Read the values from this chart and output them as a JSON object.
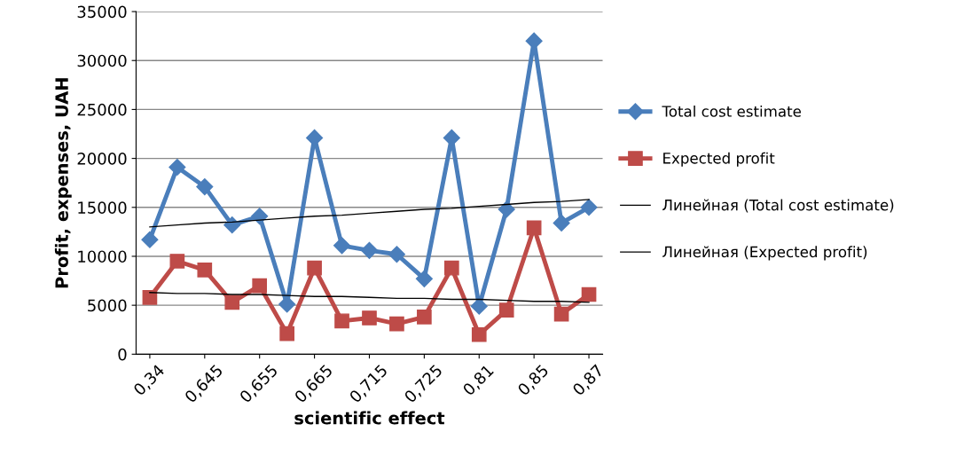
{
  "chart_data": {
    "type": "line",
    "xlabel": "scientific effect",
    "ylabel": "Profit, expenses, UAH",
    "categories": [
      "0,34",
      null,
      "0,645",
      null,
      "0,655",
      null,
      "0,665",
      null,
      "0,715",
      null,
      "0,725",
      null,
      "0,81",
      null,
      "0,85",
      null,
      "0,87"
    ],
    "series": [
      {
        "name": "Total cost estimate",
        "color": "#4a7ebb",
        "marker": "diamond",
        "values": [
          11700,
          19100,
          17100,
          13200,
          14100,
          5100,
          22100,
          11100,
          10600,
          10200,
          7700,
          22100,
          4900,
          14800,
          32000,
          13400,
          15000
        ]
      },
      {
        "name": "Expected profit",
        "color": "#be4b48",
        "marker": "square",
        "values": [
          5800,
          9500,
          8600,
          5300,
          7000,
          2100,
          8800,
          3400,
          3700,
          3100,
          3800,
          8800,
          2000,
          4500,
          12900,
          4100,
          6100
        ]
      },
      {
        "name": "Линейная (Total cost estimate)",
        "color": "#000000",
        "marker": "none",
        "values": [
          13000,
          13200,
          13400,
          13500,
          13700,
          13900,
          14100,
          14200,
          14400,
          14600,
          14800,
          14900,
          15100,
          15300,
          15500,
          15600,
          15800
        ]
      },
      {
        "name": "Линейная (Expected profit)",
        "color": "#000000",
        "marker": "none",
        "values": [
          6300,
          6200,
          6200,
          6100,
          6100,
          6000,
          5900,
          5900,
          5800,
          5700,
          5700,
          5600,
          5600,
          5500,
          5400,
          5400,
          5300
        ]
      }
    ],
    "ylim": [
      0,
      35000
    ],
    "yticks": [
      0,
      5000,
      10000,
      15000,
      20000,
      25000,
      30000,
      35000
    ],
    "grid": "y",
    "legend": "right"
  }
}
